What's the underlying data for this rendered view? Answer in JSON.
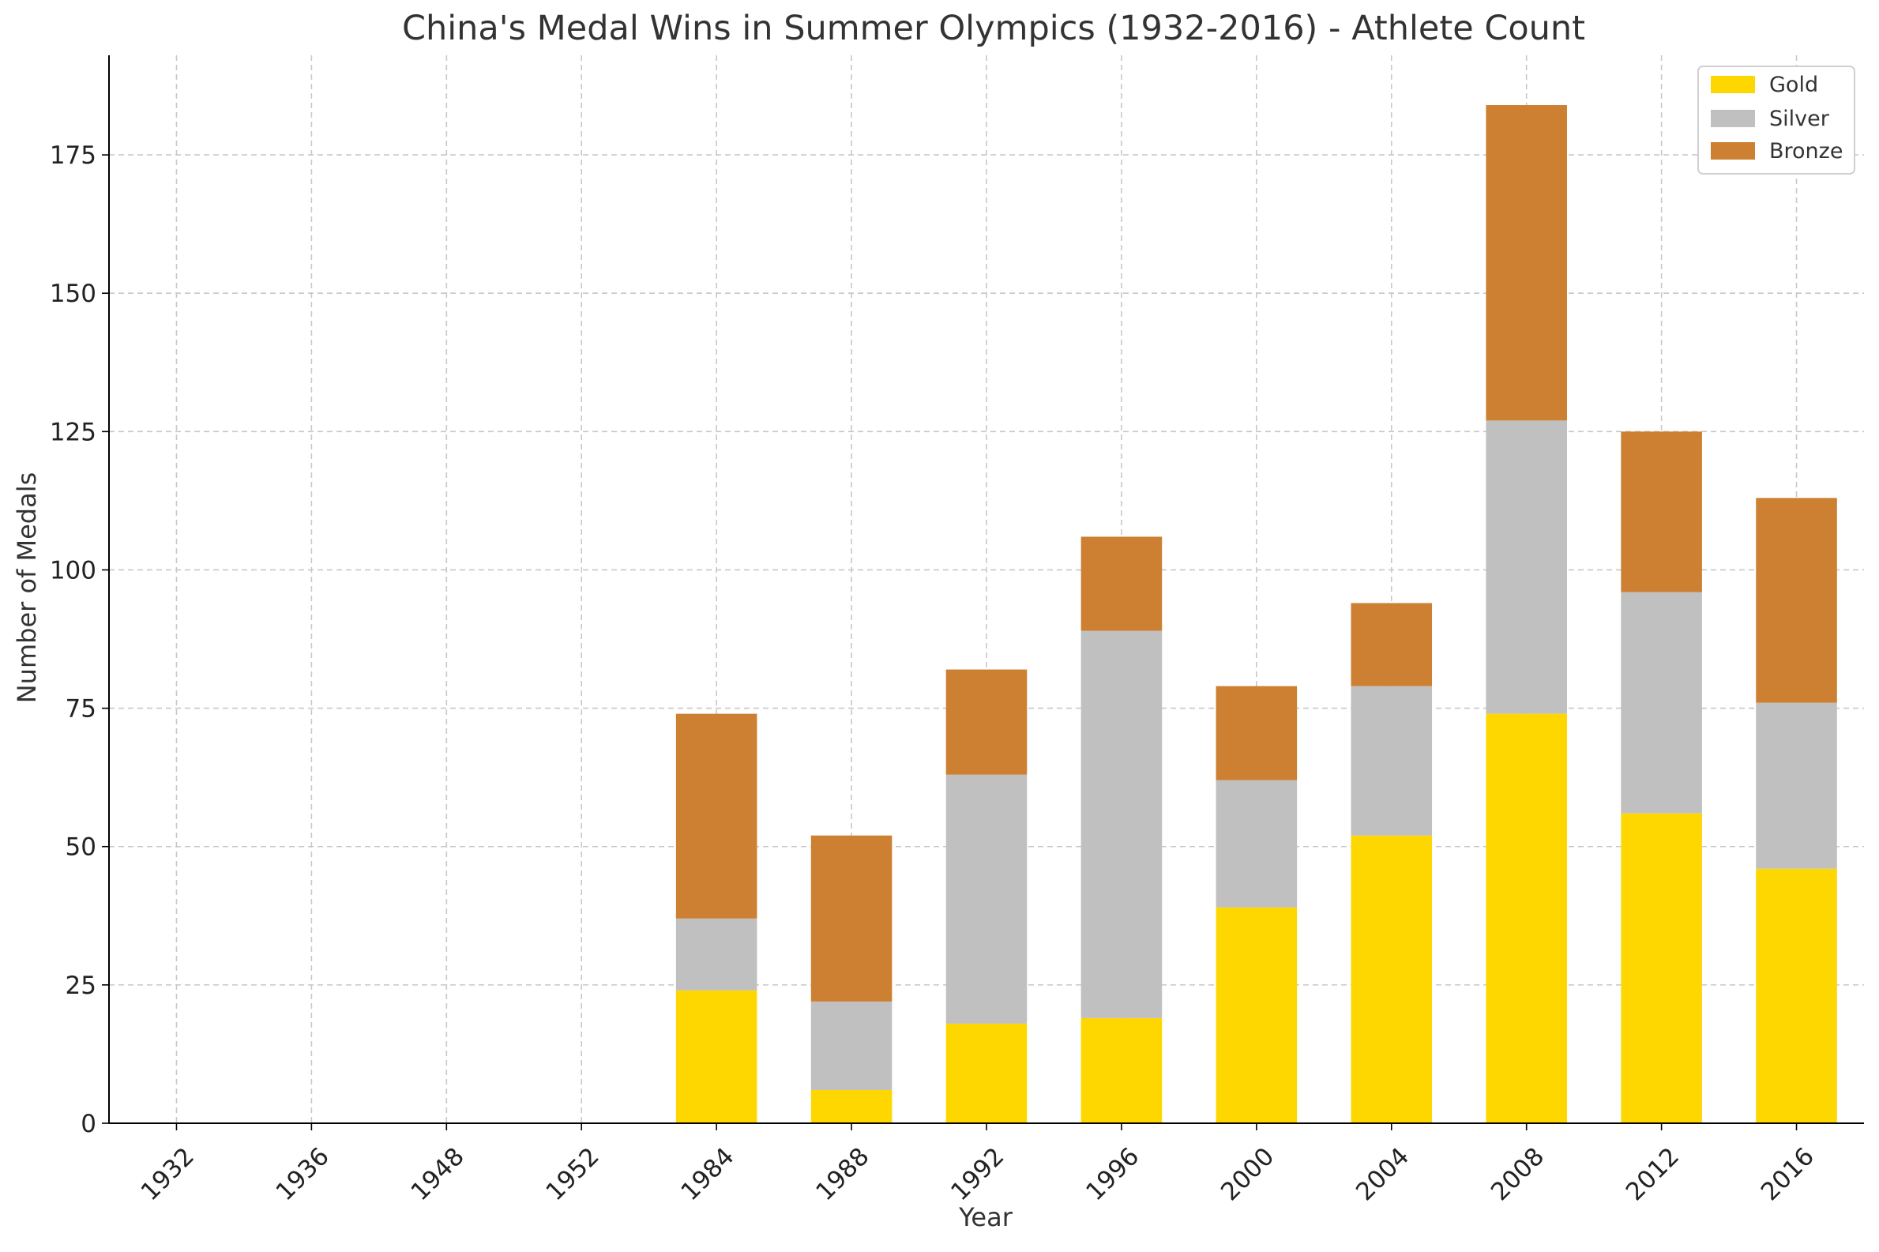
{
  "chart_data": {
    "type": "bar",
    "stacked": true,
    "title": "China's Medal Wins in Summer Olympics (1932-2016) - Athlete Count",
    "xlabel": "Year",
    "ylabel": "Number of Medals",
    "categories": [
      "1932",
      "1936",
      "1948",
      "1952",
      "1984",
      "1988",
      "1992",
      "1996",
      "2000",
      "2004",
      "2008",
      "2012",
      "2016"
    ],
    "series": [
      {
        "name": "Gold",
        "color": "#FFD700",
        "values": [
          0,
          0,
          0,
          0,
          24,
          6,
          18,
          19,
          39,
          52,
          74,
          56,
          46
        ]
      },
      {
        "name": "Silver",
        "color": "#C0C0C0",
        "values": [
          0,
          0,
          0,
          0,
          13,
          16,
          45,
          70,
          23,
          27,
          53,
          40,
          30
        ]
      },
      {
        "name": "Bronze",
        "color": "#CD7F32",
        "values": [
          0,
          0,
          0,
          0,
          37,
          30,
          19,
          17,
          17,
          15,
          57,
          29,
          37
        ]
      }
    ],
    "ylim": [
      0,
      193
    ],
    "yticks": [
      0,
      25,
      50,
      75,
      100,
      125,
      150,
      175
    ],
    "grid": true,
    "legend_position": "top-right"
  }
}
